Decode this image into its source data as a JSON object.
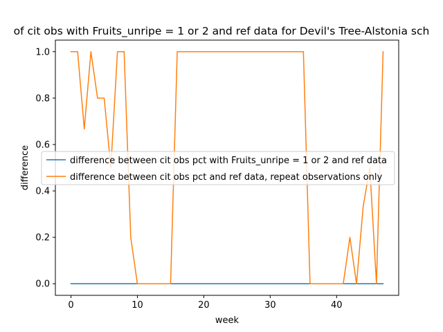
{
  "chart_data": {
    "type": "line",
    "title": "of cit obs with Fruits_unripe = 1 or 2 and ref data for Devil's Tree-Alstonia sch",
    "xlabel": "week",
    "ylabel": "difference",
    "xlim": [
      -2.35,
      49.35
    ],
    "ylim": [
      -0.05,
      1.05
    ],
    "xticks": [
      0,
      10,
      20,
      30,
      40
    ],
    "yticks": [
      0.0,
      0.2,
      0.4,
      0.6,
      0.8,
      1.0
    ],
    "xtick_labels": [
      "0",
      "10",
      "20",
      "30",
      "40"
    ],
    "ytick_labels": [
      "0.0",
      "0.2",
      "0.4",
      "0.6",
      "0.8",
      "1.0"
    ],
    "grid": false,
    "legend_position": "center-right",
    "series": [
      {
        "name": "difference between cit obs pct with Fruits_unripe = 1 or 2 and ref data",
        "color": "#1f77b4",
        "x": [
          0,
          47
        ],
        "y": [
          0.0,
          0.0
        ]
      },
      {
        "name": "difference between cit obs pct and ref data, repeat observations only",
        "color": "#ff7f0e",
        "x": [
          0,
          1,
          2,
          3,
          4,
          5,
          6,
          7,
          8,
          9,
          10,
          11,
          12,
          13,
          14,
          15,
          16,
          17,
          18,
          19,
          20,
          21,
          22,
          23,
          24,
          25,
          26,
          27,
          28,
          29,
          30,
          31,
          32,
          33,
          34,
          35,
          36,
          37,
          38,
          39,
          40,
          41,
          42,
          43,
          44,
          45,
          46,
          47
        ],
        "y": [
          1.0,
          1.0,
          0.667,
          1.0,
          0.8,
          0.8,
          0.5,
          1.0,
          1.0,
          0.2,
          0.0,
          0.0,
          0.0,
          0.0,
          0.0,
          0.0,
          1.0,
          1.0,
          1.0,
          1.0,
          1.0,
          1.0,
          1.0,
          1.0,
          1.0,
          1.0,
          1.0,
          1.0,
          1.0,
          1.0,
          1.0,
          1.0,
          1.0,
          1.0,
          1.0,
          1.0,
          0.0,
          0.0,
          0.0,
          0.0,
          0.0,
          0.0,
          0.2,
          0.0,
          0.333,
          0.5,
          0.0,
          1.0
        ]
      }
    ]
  }
}
